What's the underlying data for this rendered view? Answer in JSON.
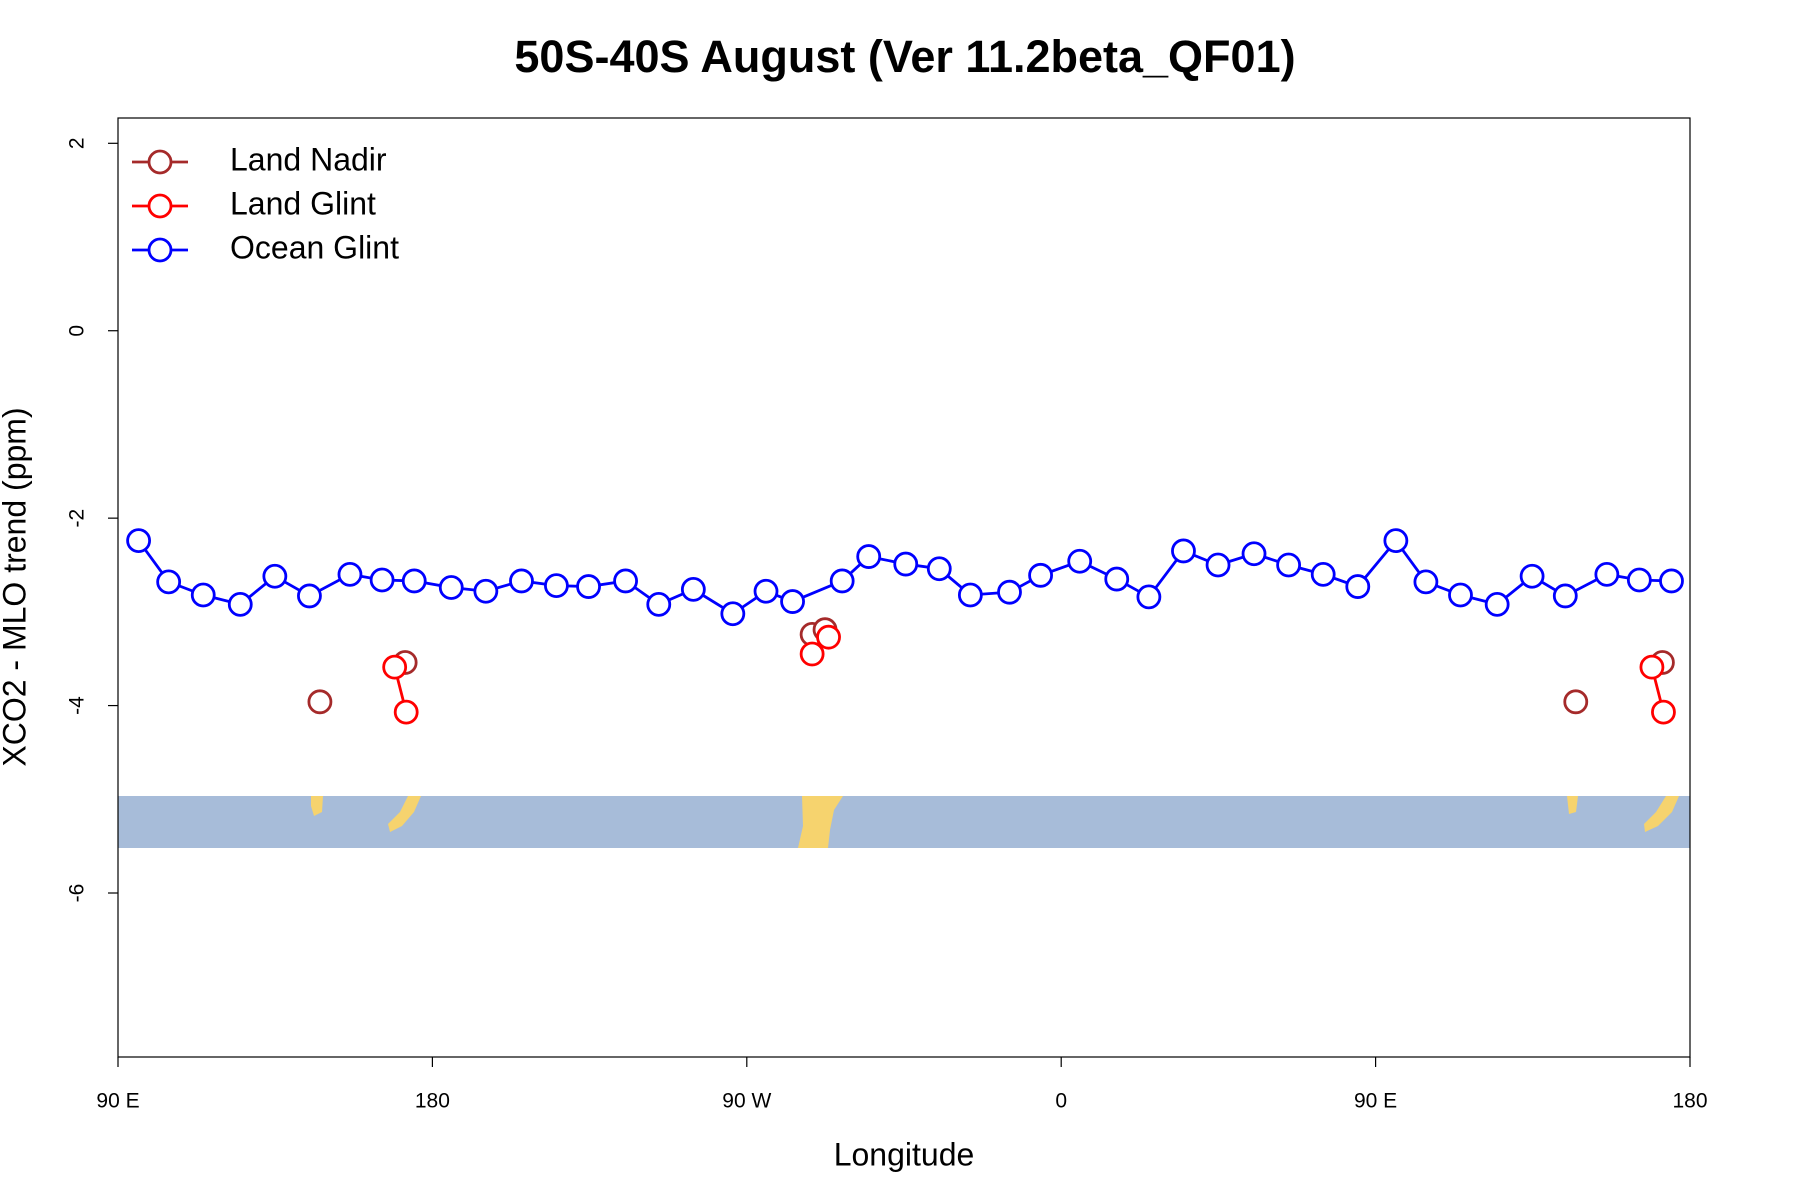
{
  "chart_data": {
    "type": "line",
    "title": "50S-40S August (Ver 11.2beta_QF01)",
    "xlabel": "Longitude",
    "ylabel": "XCO2 - MLO trend (ppm)",
    "xlim": [
      90,
      540
    ],
    "ylim": [
      -7.75,
      2.27
    ],
    "xticks": [
      {
        "value": 90,
        "label": "90 E"
      },
      {
        "value": 180,
        "label": "180"
      },
      {
        "value": 270,
        "label": "90 W"
      },
      {
        "value": 360,
        "label": "0"
      },
      {
        "value": 450,
        "label": "90 E"
      },
      {
        "value": 540,
        "label": "180"
      }
    ],
    "yticks": [
      2,
      0,
      -2,
      -4,
      -6
    ],
    "grid": false,
    "legend": "topleft",
    "series": [
      {
        "name": "Land Nadir",
        "color": "#a52a2a",
        "x": [
          147.8,
          null,
          172.2,
          null,
          288.7,
          292.4,
          null,
          507.3,
          null,
          532.1
        ],
        "values": [
          -3.96,
          null,
          -3.54,
          null,
          -3.24,
          -3.19,
          null,
          -3.96,
          null,
          -3.54
        ]
      },
      {
        "name": "Land Glint",
        "color": "#ff0000",
        "x": [
          169.2,
          172.5,
          null,
          288.7,
          293.4,
          null,
          529.1,
          532.4
        ],
        "values": [
          -3.59,
          -4.07,
          null,
          -3.45,
          -3.27,
          null,
          -3.59,
          -4.07
        ]
      },
      {
        "name": "Ocean Glint",
        "color": "#0000ff",
        "x": [
          95.9,
          104.5,
          114.4,
          125.0,
          134.9,
          144.8,
          156.4,
          165.6,
          174.8,
          185.4,
          195.3,
          205.5,
          215.5,
          224.7,
          235.3,
          244.8,
          254.7,
          266.0,
          275.5,
          283.1,
          297.3,
          304.9,
          315.5,
          325.1,
          334.0,
          345.2,
          354.1,
          365.3,
          375.9,
          385.1,
          395.0,
          404.9,
          415.2,
          425.1,
          435.0,
          444.9,
          455.8,
          464.4,
          474.3,
          484.8,
          494.8,
          504.3,
          516.2,
          525.5,
          534.7
        ],
        "values": [
          -2.24,
          -2.68,
          -2.82,
          -2.92,
          -2.62,
          -2.83,
          -2.6,
          -2.66,
          -2.67,
          -2.74,
          -2.78,
          -2.67,
          -2.72,
          -2.73,
          -2.67,
          -2.92,
          -2.76,
          -3.02,
          -2.78,
          -2.89,
          -2.67,
          -2.41,
          -2.49,
          -2.54,
          -2.82,
          -2.79,
          -2.61,
          -2.46,
          -2.65,
          -2.84,
          -2.35,
          -2.5,
          -2.38,
          -2.5,
          -2.6,
          -2.73,
          -2.24,
          -2.68,
          -2.82,
          -2.92,
          -2.62,
          -2.83,
          -2.6,
          -2.66,
          -2.67
        ]
      }
    ]
  }
}
